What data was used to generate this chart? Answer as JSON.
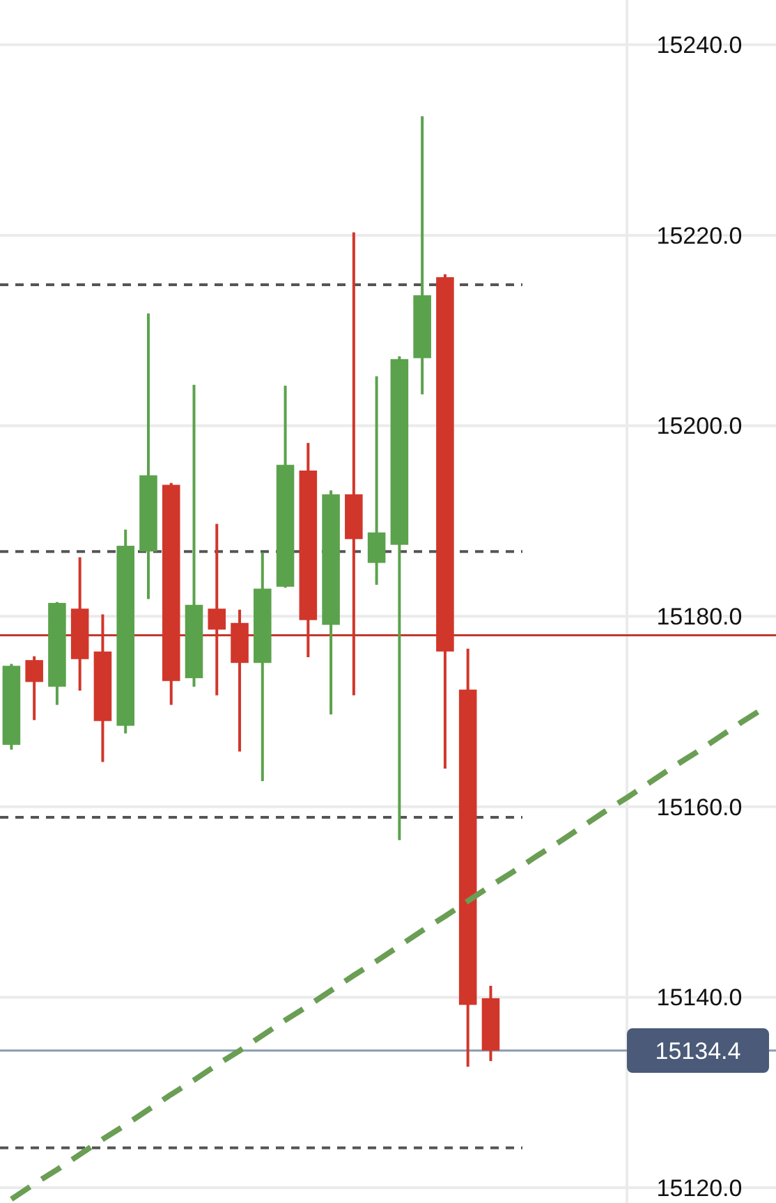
{
  "chart_data": {
    "type": "candlestick",
    "categories": [
      null,
      null,
      null,
      null,
      null,
      null,
      null,
      null,
      null,
      null,
      null,
      null,
      null,
      null,
      null,
      null,
      null,
      null,
      null,
      null,
      null,
      null,
      null,
      null,
      null,
      null,
      null,
      null,
      null,
      null,
      null,
      null,
      null,
      null
    ],
    "ohlc": [
      [
        15166.5,
        15175,
        15166,
        15174.8
      ],
      [
        15175.4,
        15175.8,
        15169.1,
        15173.1
      ],
      [
        15172.6,
        15181.5,
        15170.7,
        15181.4
      ],
      [
        15180.8,
        15186.2,
        15172.2,
        15175.5
      ],
      [
        15176.3,
        15180.2,
        15164.7,
        15169.0
      ],
      [
        15168.5,
        15189.1,
        15167.7,
        15187.4
      ],
      [
        15186.8,
        15211.8,
        15181.8,
        15194.8
      ],
      [
        15193.8,
        15194,
        15170.7,
        15173.2
      ],
      [
        15173.5,
        15204.3,
        15172.6,
        15181.2
      ],
      [
        15180.8,
        15189.7,
        15171.7,
        15178.6
      ],
      [
        15179.3,
        15180.7,
        15165.8,
        15175.1
      ],
      [
        15175.1,
        15186.7,
        15162.7,
        15182.9
      ],
      [
        15183.1,
        15204.2,
        15183,
        15195.9
      ],
      [
        15195.3,
        15198.2,
        15175.7,
        15179.6
      ],
      [
        15179.1,
        15193.2,
        15169.7,
        15192.8
      ],
      [
        15192.8,
        15220.3,
        15171.7,
        15188.1
      ],
      [
        15185.6,
        15205.2,
        15183.3,
        15188.8
      ],
      [
        15187.5,
        15207.3,
        15156.5,
        15207.0
      ],
      [
        15207.1,
        15232.5,
        15203.3,
        15213.7
      ],
      [
        15215.6,
        15215.9,
        15164.0,
        15176.3
      ],
      [
        15172.3,
        15176.6,
        15132.7,
        15139.2
      ],
      [
        15139.9,
        15141.2,
        15133.3,
        15134.4
      ],
      null,
      null,
      null,
      null,
      null,
      null,
      null,
      null,
      null,
      null,
      null,
      null
    ],
    "colors": [
      "#5ba24c",
      "#d1362b",
      "#5ba24c",
      "#d1362b",
      "#d1362b",
      "#5ba24c",
      "#5ba24c",
      "#d1362b",
      "#5ba24c",
      "#d1362b",
      "#d1362b",
      "#5ba24c",
      "#5ba24c",
      "#d1362b",
      "#5ba24c",
      "#d1362b",
      "#5ba24c",
      "#5ba24c",
      "#5ba24c",
      "#d1362b",
      "#d1362b",
      "#d1362b",
      null,
      null,
      null,
      null,
      null,
      null,
      null,
      null,
      null,
      null,
      null,
      null
    ],
    "series": [
      {
        "type": "line",
        "color": "#6a9e54",
        "line_style": "dashed",
        "values": [
          15118.8,
          15120.4,
          15121.9,
          15123.5,
          15125.1,
          15126.6,
          15128.2,
          15129.8,
          15131.3,
          15132.9,
          15134.4,
          15136.0,
          15137.6,
          15139.1,
          15140.7,
          15142.3,
          15143.8,
          15145.4,
          15147.0,
          15148.5,
          15150.1,
          15151.7,
          15153.2,
          15154.8,
          15156.3,
          15157.9,
          15159.5,
          15161.0,
          15162.6,
          15164.2,
          15165.7,
          15167.3,
          15168.9,
          15170.4
        ]
      }
    ],
    "ylim": [
      15118.4,
      15244.7
    ],
    "yticks": [
      {
        "value": 15120,
        "label": "15120.0"
      },
      {
        "value": 15140,
        "label": "15140.0"
      },
      {
        "value": 15160,
        "label": "15160.0"
      },
      {
        "value": 15180,
        "label": "15180.0"
      },
      {
        "value": 15200,
        "label": "15200.0"
      },
      {
        "value": 15220,
        "label": "15220.0"
      },
      {
        "value": 15240,
        "label": "15240.0"
      }
    ],
    "grid": "y",
    "ref_lines": [
      {
        "axis": "y",
        "value": 15214.8,
        "color": "#555555",
        "line_style": "dashed"
      },
      {
        "axis": "y",
        "value": 15186.8,
        "color": "#555555",
        "line_style": "dashed"
      },
      {
        "axis": "y",
        "value": 15158.9,
        "color": "#555555",
        "line_style": "dashed"
      },
      {
        "axis": "y",
        "value": 15124.2,
        "color": "#555555",
        "line_style": "dashed"
      },
      {
        "axis": "y",
        "value": 15178.0,
        "color": "#c0392b",
        "line_style": "solid"
      },
      {
        "axis": "y",
        "value": 15134.4,
        "label": "15134.4",
        "color": "#8a9bb0",
        "line_style": "solid"
      }
    ]
  }
}
